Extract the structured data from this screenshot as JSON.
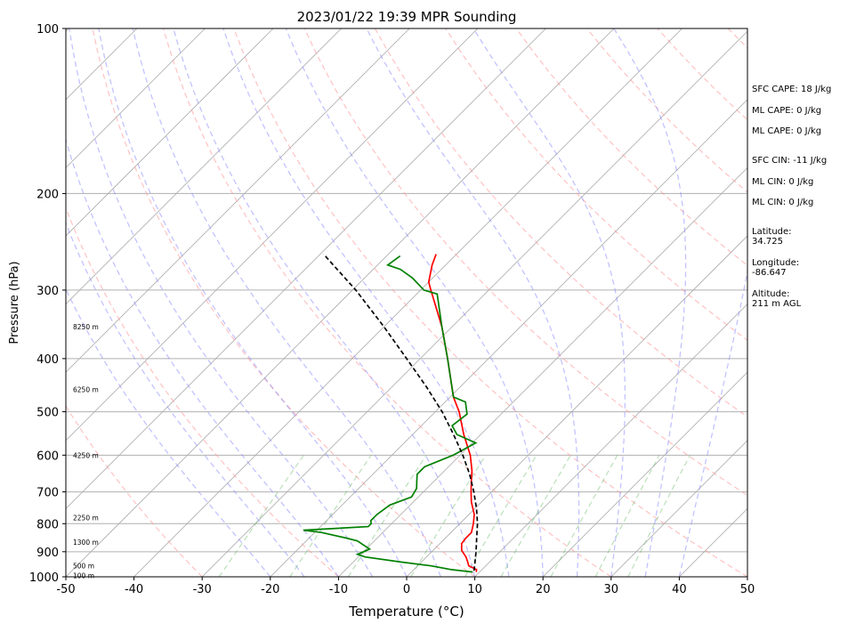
{
  "chart_data": {
    "type": "line",
    "title": "2023/01/22 19:39 MPR Sounding",
    "xlabel": "Temperature (°C)",
    "ylabel": "Pressure (hPa)",
    "xlim": [
      -50,
      50
    ],
    "ylim": [
      1000,
      100
    ],
    "y_scale": "log",
    "skew_deg": 45,
    "grid": true,
    "x_ticks": [
      -50,
      -40,
      -30,
      -20,
      -10,
      0,
      10,
      20,
      30,
      40,
      50
    ],
    "y_ticks": [
      100,
      200,
      300,
      400,
      500,
      600,
      700,
      800,
      900,
      1000
    ],
    "height_labels": [
      {
        "p": 350,
        "label": "8250 m"
      },
      {
        "p": 455,
        "label": "6250 m"
      },
      {
        "p": 600,
        "label": "4250 m"
      },
      {
        "p": 780,
        "label": "2250 m"
      },
      {
        "p": 865,
        "label": "1300 m"
      },
      {
        "p": 955,
        "label": "500 m"
      },
      {
        "p": 995,
        "label": "100 m"
      }
    ],
    "series": [
      {
        "key": "temperature",
        "color": "#ff0000",
        "points": [
          [
            980,
            9.5
          ],
          [
            970,
            9.2
          ],
          [
            955,
            7.5
          ],
          [
            940,
            6.8
          ],
          [
            920,
            5.8
          ],
          [
            895,
            4.2
          ],
          [
            870,
            3.2
          ],
          [
            850,
            3.0
          ],
          [
            830,
            3.0
          ],
          [
            800,
            2.0
          ],
          [
            770,
            0.8
          ],
          [
            730,
            -1.5
          ],
          [
            700,
            -3.0
          ],
          [
            670,
            -4.5
          ],
          [
            640,
            -6.0
          ],
          [
            600,
            -8.5
          ],
          [
            550,
            -12.5
          ],
          [
            500,
            -16.5
          ],
          [
            470,
            -19.5
          ],
          [
            400,
            -26.0
          ],
          [
            350,
            -31.5
          ],
          [
            300,
            -38.5
          ],
          [
            290,
            -40.0
          ],
          [
            270,
            -42.0
          ],
          [
            258,
            -43.0
          ]
        ]
      },
      {
        "key": "dewpoint",
        "color": "#008000",
        "points": [
          [
            980,
            9.0
          ],
          [
            970,
            5.5
          ],
          [
            955,
            2.0
          ],
          [
            940,
            -3.0
          ],
          [
            920,
            -9.0
          ],
          [
            910,
            -10.5
          ],
          [
            890,
            -9.5
          ],
          [
            860,
            -12.5
          ],
          [
            850,
            -14.5
          ],
          [
            830,
            -19.0
          ],
          [
            822,
            -22.0
          ],
          [
            810,
            -13.0
          ],
          [
            800,
            -13.0
          ],
          [
            790,
            -13.5
          ],
          [
            770,
            -13.5
          ],
          [
            740,
            -13.0
          ],
          [
            715,
            -11.0
          ],
          [
            690,
            -11.5
          ],
          [
            670,
            -12.5
          ],
          [
            650,
            -13.5
          ],
          [
            630,
            -13.5
          ],
          [
            600,
            -11.0
          ],
          [
            570,
            -9.5
          ],
          [
            550,
            -13.5
          ],
          [
            530,
            -15.5
          ],
          [
            505,
            -15.0
          ],
          [
            480,
            -17.0
          ],
          [
            470,
            -19.5
          ],
          [
            400,
            -26.0
          ],
          [
            350,
            -31.5
          ],
          [
            305,
            -37.0
          ],
          [
            300,
            -39.5
          ],
          [
            285,
            -43.0
          ],
          [
            275,
            -46.0
          ],
          [
            270,
            -48.5
          ],
          [
            260,
            -48.0
          ]
        ]
      },
      {
        "key": "parcel",
        "color": "#000000",
        "dashed": true,
        "points": [
          [
            975,
            9.0
          ],
          [
            950,
            8.2
          ],
          [
            900,
            6.5
          ],
          [
            850,
            4.6
          ],
          [
            800,
            2.6
          ],
          [
            750,
            0.2
          ],
          [
            700,
            -2.6
          ],
          [
            650,
            -5.8
          ],
          [
            600,
            -9.6
          ],
          [
            550,
            -14.0
          ],
          [
            500,
            -19.0
          ],
          [
            450,
            -25.0
          ],
          [
            400,
            -32.0
          ],
          [
            350,
            -40.0
          ],
          [
            300,
            -49.5
          ],
          [
            258,
            -59.5
          ]
        ]
      }
    ]
  },
  "stats": {
    "sfc_cape": "SFC CAPE: 18 J/kg",
    "ml_cape_1": "ML CAPE: 0 J/kg",
    "ml_cape_2": "ML CAPE: 0 J/kg",
    "sfc_cin": "SFC CIN: -11 J/kg",
    "ml_cin_1": "ML CIN: 0 J/kg",
    "ml_cin_2": "ML CIN: 0 J/kg",
    "latitude": "Latitude:\n34.725",
    "longitude": "Longitude:\n-86.647",
    "altitude": "Altitude:\n211 m AGL"
  }
}
